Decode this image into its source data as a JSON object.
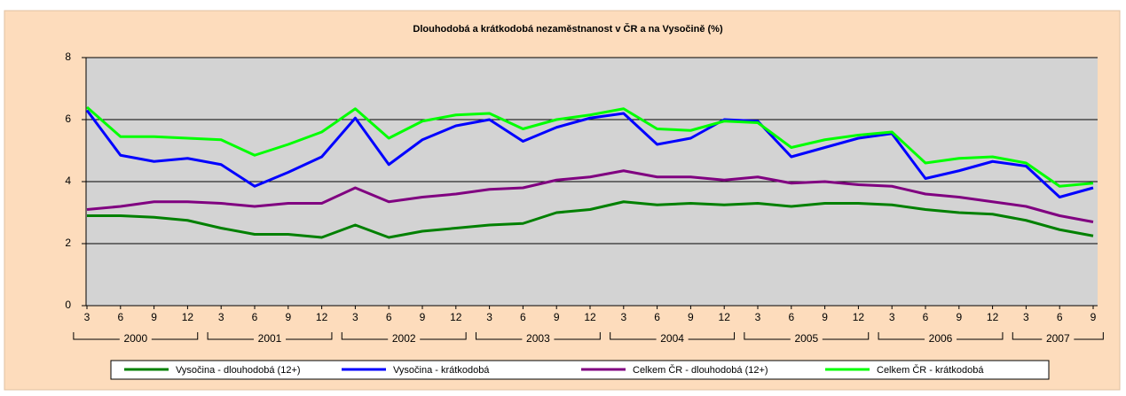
{
  "chart_data": {
    "type": "line",
    "title": "Dlouhodobá a krátkodobá nezaměstnanost v ČR a na Vysočině (%)",
    "categories": [
      "3",
      "6",
      "9",
      "12",
      "3",
      "6",
      "9",
      "12",
      "3",
      "6",
      "9",
      "12",
      "3",
      "6",
      "9",
      "12",
      "3",
      "6",
      "9",
      "12",
      "3",
      "6",
      "9",
      "12",
      "3",
      "6",
      "9",
      "12",
      "3",
      "6",
      "9"
    ],
    "category_groups": [
      "2000",
      "2001",
      "2002",
      "2003",
      "2004",
      "2005",
      "2006",
      "2007"
    ],
    "ylim": [
      0,
      8
    ],
    "yticks": [
      0,
      2,
      4,
      6,
      8
    ],
    "grid": true,
    "legend": "bottom",
    "series": [
      {
        "name": "Vysočina - dlouhodobá (12+)",
        "color": "#008000",
        "values": [
          2.9,
          2.9,
          2.85,
          2.75,
          2.5,
          2.3,
          2.3,
          2.2,
          2.6,
          2.2,
          2.4,
          2.5,
          2.6,
          2.65,
          3.0,
          3.1,
          3.35,
          3.25,
          3.3,
          3.25,
          3.3,
          3.2,
          3.3,
          3.3,
          3.25,
          3.1,
          3.0,
          2.95,
          2.75,
          2.45,
          2.25
        ]
      },
      {
        "name": "Vysočina - krátkodobá",
        "color": "#0000ff",
        "values": [
          6.3,
          4.85,
          4.65,
          4.75,
          4.55,
          3.85,
          4.3,
          4.8,
          6.05,
          4.55,
          5.35,
          5.8,
          6.0,
          5.3,
          5.75,
          6.05,
          6.2,
          5.2,
          5.4,
          6.0,
          5.95,
          4.8,
          5.1,
          5.4,
          5.55,
          4.1,
          4.35,
          4.65,
          4.5,
          3.5,
          3.8
        ]
      },
      {
        "name": "Celkem ČR - dlouhodobá (12+)",
        "color": "#800080",
        "values": [
          3.1,
          3.2,
          3.35,
          3.35,
          3.3,
          3.2,
          3.3,
          3.3,
          3.8,
          3.35,
          3.5,
          3.6,
          3.75,
          3.8,
          4.05,
          4.15,
          4.35,
          4.15,
          4.15,
          4.05,
          4.15,
          3.95,
          4.0,
          3.9,
          3.85,
          3.6,
          3.5,
          3.35,
          3.2,
          2.9,
          2.7
        ]
      },
      {
        "name": "Celkem ČR - krátkodobá",
        "color": "#00ff00",
        "values": [
          6.4,
          5.45,
          5.45,
          5.4,
          5.35,
          4.85,
          5.2,
          5.6,
          6.35,
          5.4,
          5.95,
          6.15,
          6.2,
          5.7,
          6.0,
          6.15,
          6.35,
          5.7,
          5.65,
          5.95,
          5.9,
          5.1,
          5.35,
          5.5,
          5.6,
          4.6,
          4.75,
          4.8,
          4.6,
          3.85,
          3.95
        ]
      }
    ]
  }
}
